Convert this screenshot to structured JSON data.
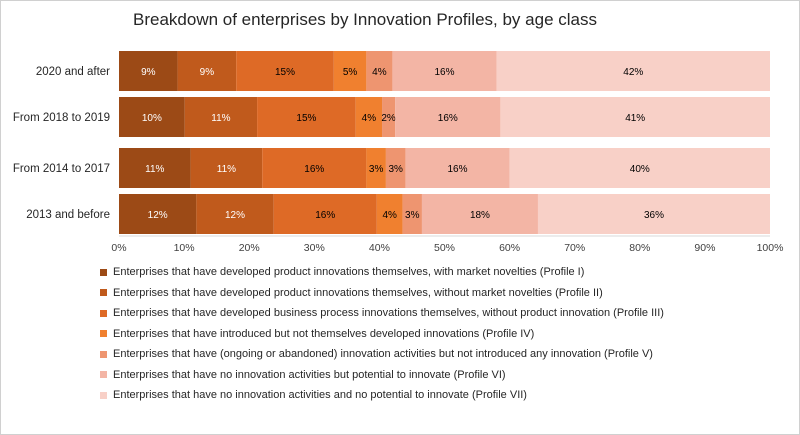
{
  "chart_data": {
    "type": "bar",
    "orientation": "horizontal",
    "stacked": "percent",
    "title": "Breakdown of enterprises by Innovation Profiles, by age class",
    "categories": [
      "2020 and after",
      "From 2018 to 2019",
      "From 2014 to 2017",
      "2013 and before"
    ],
    "xlim": [
      0,
      100
    ],
    "xticks": [
      "0%",
      "10%",
      "20%",
      "30%",
      "40%",
      "50%",
      "60%",
      "70%",
      "80%",
      "90%",
      "100%"
    ],
    "legend_position": "bottom",
    "series": [
      {
        "name": "Enterprises that have developed product innovations themselves, with market novelties (Profile I)",
        "color": "#9c4a16",
        "label_color": "#ffffff",
        "values": [
          9,
          10,
          11,
          12
        ]
      },
      {
        "name": "Enterprises that have developed product innovations themselves, without market novelties (Profile II)",
        "color": "#c05a1c",
        "label_color": "#ffffff",
        "values": [
          9,
          11,
          11,
          12
        ]
      },
      {
        "name": "Enterprises that have developed business process innovations themselves, without product innovation (Profile III)",
        "color": "#de6a26",
        "label_color": "#000000",
        "values": [
          15,
          15,
          16,
          16
        ]
      },
      {
        "name": "Enterprises that have introduced but not themselves developed innovations (Profile IV)",
        "color": "#f0802f",
        "label_color": "#000000",
        "values": [
          5,
          4,
          3,
          4
        ]
      },
      {
        "name": "Enterprises that have (ongoing or abandoned) innovation activities but not introduced any innovation (Profile V)",
        "color": "#ee9570",
        "label_color": "#000000",
        "values": [
          4,
          2,
          3,
          3
        ]
      },
      {
        "name": "Enterprises that have no innovation activities but potential to innovate (Profile VI)",
        "color": "#f3b5a5",
        "label_color": "#000000",
        "values": [
          16,
          16,
          16,
          18
        ]
      },
      {
        "name": "Enterprises that have no innovation activities and no potential to innovate (Profile VII)",
        "color": "#f8d0c7",
        "label_color": "#000000",
        "values": [
          42,
          41,
          40,
          36
        ]
      }
    ]
  }
}
